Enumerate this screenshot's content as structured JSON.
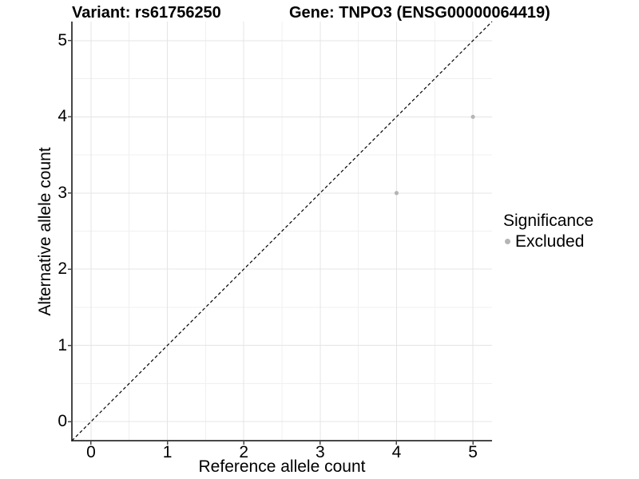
{
  "titles": {
    "variant": "Variant: rs61756250",
    "gene": "Gene: TNPO3 (ENSG00000064419)"
  },
  "chart_data": {
    "type": "scatter",
    "title_left": "Variant: rs61756250",
    "title_right": "Gene: TNPO3 (ENSG00000064419)",
    "xlabel": "Reference allele count",
    "ylabel": "Alternative allele count",
    "x_ticks": [
      0,
      1,
      2,
      3,
      4,
      5
    ],
    "y_ticks": [
      0,
      1,
      2,
      3,
      4,
      5
    ],
    "xlim": [
      -0.25,
      5.25
    ],
    "ylim": [
      -0.25,
      5.25
    ],
    "grid": {
      "major": true,
      "minor": true
    },
    "reference_line": {
      "kind": "identity y=x",
      "style": "dashed",
      "color": "#000000"
    },
    "series": [
      {
        "name": "Excluded",
        "color": "#b5b5b5",
        "points": [
          {
            "x": 4,
            "y": 3
          },
          {
            "x": 5,
            "y": 4
          }
        ]
      }
    ],
    "legend": {
      "title": "Significance",
      "position": "right",
      "entries": [
        {
          "label": "Excluded",
          "color": "#b5b5b5"
        }
      ]
    },
    "colors": {
      "background": "#ffffff",
      "grid_major": "#e4e4e4",
      "grid_minor": "#f0f0f0",
      "axis_line": "#474747",
      "text": "#000000"
    }
  }
}
